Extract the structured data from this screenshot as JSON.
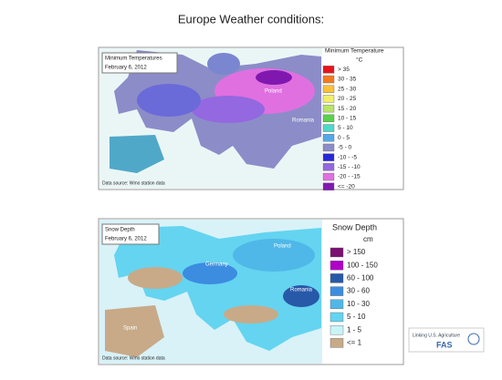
{
  "title": "Europe Weather conditions:",
  "maps": [
    {
      "box_title": "Minimum Temperatures",
      "date": "February 6, 2012",
      "legend_title": "Minimum Temperature",
      "legend_unit": "°C",
      "legend": [
        {
          "label": "> 35",
          "color": "#e8141c"
        },
        {
          "label": "30 - 35",
          "color": "#f47a20"
        },
        {
          "label": "25 - 30",
          "color": "#f8c23a"
        },
        {
          "label": "20 - 25",
          "color": "#f2ee6a"
        },
        {
          "label": "15 - 20",
          "color": "#b8e46a"
        },
        {
          "label": "10 - 15",
          "color": "#5ad24a"
        },
        {
          "label": "5 - 10",
          "color": "#50d8c8"
        },
        {
          "label": "0 - 5",
          "color": "#54a8e8"
        },
        {
          "label": "-5 - 0",
          "color": "#8c8cc8"
        },
        {
          "label": "-10 - -5",
          "color": "#2828d8"
        },
        {
          "label": "-15 - -10",
          "color": "#9468e0"
        },
        {
          "label": "-20 - -15",
          "color": "#e070e0"
        },
        {
          "label": "<= -20",
          "color": "#8018b0"
        }
      ],
      "places": [
        "Poland",
        "Romania"
      ],
      "source": "Data source: Wmo station data"
    },
    {
      "box_title": "Snow Depth",
      "date": "February 6, 2012",
      "legend_title": "Snow Depth",
      "legend_unit": "cm",
      "legend": [
        {
          "label": "> 150",
          "color": "#7a1070"
        },
        {
          "label": "100 - 150",
          "color": "#b000c8"
        },
        {
          "label": "60 - 100",
          "color": "#2858a8"
        },
        {
          "label": "30 - 60",
          "color": "#3c8ce0"
        },
        {
          "label": "10 - 30",
          "color": "#50b8e8"
        },
        {
          "label": "5 - 10",
          "color": "#64d4f0"
        },
        {
          "label": "1 - 5",
          "color": "#c8f4f8"
        },
        {
          "label": "<= 1",
          "color": "#c8aa88"
        }
      ],
      "places": [
        "Poland",
        "Germany",
        "Romania",
        "Spain"
      ],
      "source": "Data source: Wmo station data"
    }
  ],
  "logo": {
    "text": "Linking U.S. Agriculture",
    "brand": "FAS"
  }
}
